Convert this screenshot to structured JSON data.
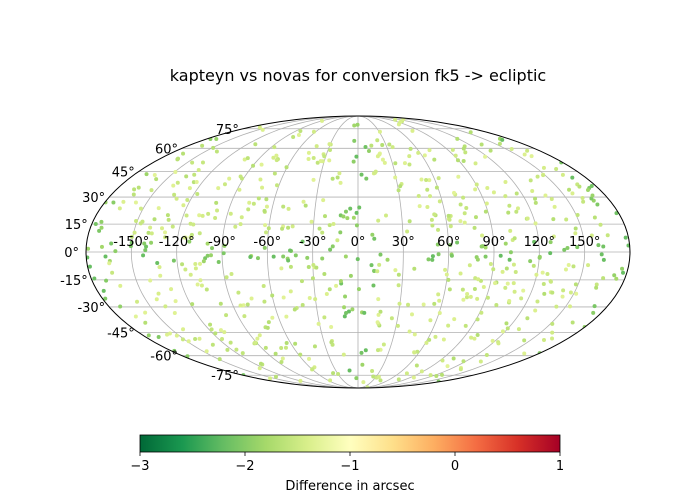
{
  "chart_data": {
    "type": "scatter",
    "projection": "mollweide",
    "title": "kapteyn vs novas for conversion fk5 -> ecliptic",
    "longitude_ticks": [
      "-150°",
      "-120°",
      "-90°",
      "-60°",
      "-30°",
      "0°",
      "30°",
      "60°",
      "90°",
      "120°",
      "150°"
    ],
    "longitude_tick_values": [
      -150,
      -120,
      -90,
      -60,
      -30,
      0,
      30,
      60,
      90,
      120,
      150
    ],
    "latitude_ticks": [
      "-75°",
      "-60°",
      "-45°",
      "-30°",
      "-15°",
      "0°",
      "15°",
      "30°",
      "45°",
      "60°",
      "75°"
    ],
    "latitude_tick_values": [
      -75,
      -60,
      -45,
      -30,
      -15,
      0,
      15,
      30,
      45,
      60,
      75
    ],
    "grid": true,
    "colorbar": {
      "label": "Difference in arcsec",
      "ticks": [
        "−3",
        "−2",
        "−1",
        "0",
        "1"
      ],
      "tick_values": [
        -3,
        -2,
        -1,
        0,
        1
      ],
      "range": [
        -3,
        1
      ],
      "colormap": "RdYlGn_r",
      "color_stops": [
        "#006837",
        "#1a9850",
        "#66bd63",
        "#a6d96a",
        "#d9ef8b",
        "#ffffbf",
        "#fee08b",
        "#fdae61",
        "#f46d43",
        "#d73027",
        "#a50026"
      ]
    },
    "points_summary": {
      "count": 700,
      "value_range_near_poles": [
        -1.7,
        -1.3
      ],
      "value_near_ecliptic_equator": -2.2
    }
  }
}
